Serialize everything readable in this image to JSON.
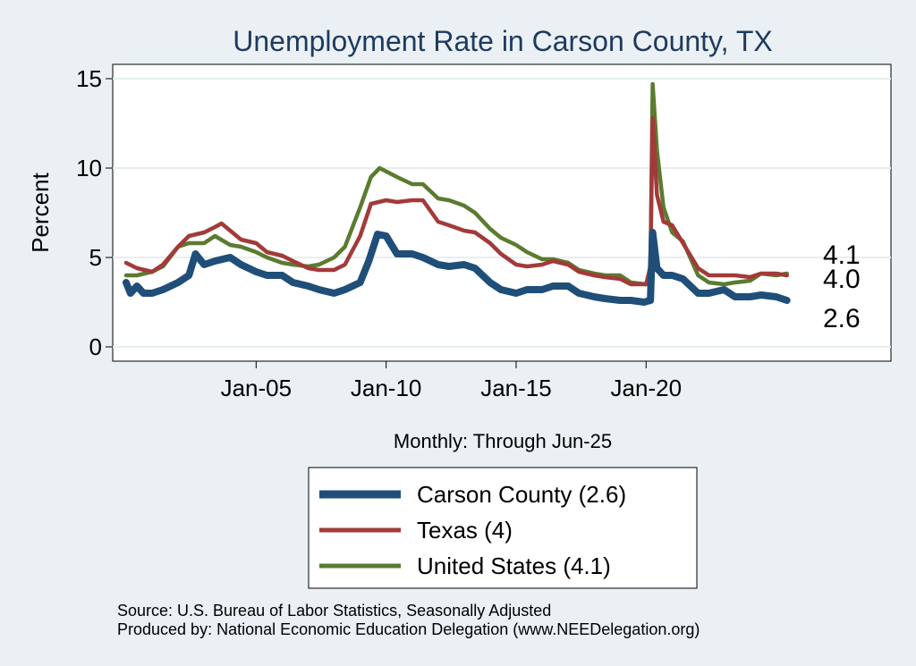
{
  "chart_data": {
    "type": "line",
    "title": "Unemployment Rate in Carson  County, TX",
    "ylabel": "Percent",
    "xlabel": "Monthly: Through Jun-25",
    "ylim": [
      0,
      15
    ],
    "yticks": [
      0,
      5,
      10,
      15
    ],
    "xlim": [
      "2000-01",
      "2029-06"
    ],
    "xticks": [
      {
        "label": "Jan-05",
        "date": "2005-01"
      },
      {
        "label": "Jan-10",
        "date": "2010-01"
      },
      {
        "label": "Jan-15",
        "date": "2015-01"
      },
      {
        "label": "Jan-20",
        "date": "2020-01"
      }
    ],
    "grid": true,
    "legend_position": "bottom-center",
    "series": [
      {
        "name": "Carson  County (2.6)",
        "legend": "Carson  County (2.6)",
        "color": "#1f4e79",
        "end_label": "2.6",
        "points": [
          [
            "2000-01",
            3.6
          ],
          [
            "2000-03",
            3.0
          ],
          [
            "2000-06",
            3.4
          ],
          [
            "2000-09",
            3.0
          ],
          [
            "2001-01",
            3.0
          ],
          [
            "2001-06",
            3.2
          ],
          [
            "2002-01",
            3.6
          ],
          [
            "2002-06",
            4.0
          ],
          [
            "2002-09",
            5.2
          ],
          [
            "2003-01",
            4.6
          ],
          [
            "2003-06",
            4.8
          ],
          [
            "2004-01",
            5.0
          ],
          [
            "2004-06",
            4.6
          ],
          [
            "2005-01",
            4.2
          ],
          [
            "2005-06",
            4.0
          ],
          [
            "2006-01",
            4.0
          ],
          [
            "2006-06",
            3.6
          ],
          [
            "2007-01",
            3.4
          ],
          [
            "2007-06",
            3.2
          ],
          [
            "2008-01",
            3.0
          ],
          [
            "2008-06",
            3.2
          ],
          [
            "2009-01",
            3.6
          ],
          [
            "2009-05",
            4.8
          ],
          [
            "2009-09",
            6.3
          ],
          [
            "2010-01",
            6.2
          ],
          [
            "2010-06",
            5.2
          ],
          [
            "2011-01",
            5.2
          ],
          [
            "2011-06",
            5.0
          ],
          [
            "2012-01",
            4.6
          ],
          [
            "2012-06",
            4.5
          ],
          [
            "2013-01",
            4.6
          ],
          [
            "2013-06",
            4.4
          ],
          [
            "2014-01",
            3.6
          ],
          [
            "2014-06",
            3.2
          ],
          [
            "2015-01",
            3.0
          ],
          [
            "2015-06",
            3.2
          ],
          [
            "2016-01",
            3.2
          ],
          [
            "2016-06",
            3.4
          ],
          [
            "2017-01",
            3.4
          ],
          [
            "2017-06",
            3.0
          ],
          [
            "2018-01",
            2.8
          ],
          [
            "2018-06",
            2.7
          ],
          [
            "2019-01",
            2.6
          ],
          [
            "2019-06",
            2.6
          ],
          [
            "2019-12",
            2.5
          ],
          [
            "2020-03",
            2.6
          ],
          [
            "2020-04",
            6.4
          ],
          [
            "2020-06",
            4.4
          ],
          [
            "2020-09",
            4.0
          ],
          [
            "2021-01",
            4.0
          ],
          [
            "2021-06",
            3.8
          ],
          [
            "2022-01",
            3.0
          ],
          [
            "2022-06",
            3.0
          ],
          [
            "2023-01",
            3.2
          ],
          [
            "2023-06",
            2.8
          ],
          [
            "2024-01",
            2.8
          ],
          [
            "2024-06",
            2.9
          ],
          [
            "2025-01",
            2.8
          ],
          [
            "2025-06",
            2.6
          ]
        ]
      },
      {
        "name": "Texas (4)",
        "legend": "Texas (4)",
        "color": "#a33a3a",
        "end_label": "4.0",
        "points": [
          [
            "2000-01",
            4.7
          ],
          [
            "2000-06",
            4.4
          ],
          [
            "2001-01",
            4.2
          ],
          [
            "2001-06",
            4.6
          ],
          [
            "2002-01",
            5.6
          ],
          [
            "2002-06",
            6.2
          ],
          [
            "2003-01",
            6.4
          ],
          [
            "2003-06",
            6.7
          ],
          [
            "2003-09",
            6.9
          ],
          [
            "2004-01",
            6.5
          ],
          [
            "2004-06",
            6.0
          ],
          [
            "2005-01",
            5.8
          ],
          [
            "2005-06",
            5.3
          ],
          [
            "2006-01",
            5.1
          ],
          [
            "2006-06",
            4.8
          ],
          [
            "2007-01",
            4.4
          ],
          [
            "2007-06",
            4.3
          ],
          [
            "2008-01",
            4.3
          ],
          [
            "2008-06",
            4.6
          ],
          [
            "2009-01",
            6.2
          ],
          [
            "2009-06",
            8.0
          ],
          [
            "2010-01",
            8.2
          ],
          [
            "2010-06",
            8.1
          ],
          [
            "2011-01",
            8.2
          ],
          [
            "2011-06",
            8.2
          ],
          [
            "2012-01",
            7.0
          ],
          [
            "2012-06",
            6.8
          ],
          [
            "2013-01",
            6.5
          ],
          [
            "2013-06",
            6.4
          ],
          [
            "2014-01",
            5.8
          ],
          [
            "2014-06",
            5.2
          ],
          [
            "2015-01",
            4.6
          ],
          [
            "2015-06",
            4.5
          ],
          [
            "2016-01",
            4.6
          ],
          [
            "2016-06",
            4.8
          ],
          [
            "2017-01",
            4.6
          ],
          [
            "2017-06",
            4.2
          ],
          [
            "2018-01",
            4.0
          ],
          [
            "2018-06",
            3.9
          ],
          [
            "2019-01",
            3.8
          ],
          [
            "2019-06",
            3.5
          ],
          [
            "2020-01",
            3.5
          ],
          [
            "2020-03",
            4.5
          ],
          [
            "2020-04",
            12.8
          ],
          [
            "2020-06",
            8.5
          ],
          [
            "2020-09",
            7.0
          ],
          [
            "2021-01",
            6.8
          ],
          [
            "2021-06",
            5.8
          ],
          [
            "2022-01",
            4.4
          ],
          [
            "2022-06",
            4.0
          ],
          [
            "2023-01",
            4.0
          ],
          [
            "2023-06",
            4.0
          ],
          [
            "2024-01",
            3.9
          ],
          [
            "2024-06",
            4.1
          ],
          [
            "2025-01",
            4.1
          ],
          [
            "2025-06",
            4.0
          ]
        ]
      },
      {
        "name": "United States (4.1)",
        "legend": "United States (4.1)",
        "color": "#5b7b2f",
        "end_label": "4.1",
        "points": [
          [
            "2000-01",
            4.0
          ],
          [
            "2000-06",
            4.0
          ],
          [
            "2001-01",
            4.2
          ],
          [
            "2001-06",
            4.5
          ],
          [
            "2002-01",
            5.6
          ],
          [
            "2002-06",
            5.8
          ],
          [
            "2003-01",
            5.8
          ],
          [
            "2003-06",
            6.2
          ],
          [
            "2004-01",
            5.7
          ],
          [
            "2004-06",
            5.6
          ],
          [
            "2005-01",
            5.3
          ],
          [
            "2005-06",
            5.0
          ],
          [
            "2006-01",
            4.7
          ],
          [
            "2006-06",
            4.6
          ],
          [
            "2007-01",
            4.5
          ],
          [
            "2007-06",
            4.6
          ],
          [
            "2008-01",
            5.0
          ],
          [
            "2008-06",
            5.6
          ],
          [
            "2009-01",
            7.8
          ],
          [
            "2009-06",
            9.5
          ],
          [
            "2009-10",
            10.0
          ],
          [
            "2010-06",
            9.5
          ],
          [
            "2011-01",
            9.1
          ],
          [
            "2011-06",
            9.1
          ],
          [
            "2012-01",
            8.3
          ],
          [
            "2012-06",
            8.2
          ],
          [
            "2013-01",
            7.9
          ],
          [
            "2013-06",
            7.5
          ],
          [
            "2014-01",
            6.6
          ],
          [
            "2014-06",
            6.1
          ],
          [
            "2015-01",
            5.7
          ],
          [
            "2015-06",
            5.3
          ],
          [
            "2016-01",
            4.9
          ],
          [
            "2016-06",
            4.9
          ],
          [
            "2017-01",
            4.7
          ],
          [
            "2017-06",
            4.3
          ],
          [
            "2018-01",
            4.1
          ],
          [
            "2018-06",
            4.0
          ],
          [
            "2019-01",
            4.0
          ],
          [
            "2019-06",
            3.6
          ],
          [
            "2020-01",
            3.5
          ],
          [
            "2020-03",
            4.4
          ],
          [
            "2020-04",
            14.7
          ],
          [
            "2020-06",
            11.0
          ],
          [
            "2020-09",
            7.8
          ],
          [
            "2021-01",
            6.4
          ],
          [
            "2021-06",
            5.9
          ],
          [
            "2022-01",
            4.0
          ],
          [
            "2022-06",
            3.6
          ],
          [
            "2023-01",
            3.5
          ],
          [
            "2023-06",
            3.6
          ],
          [
            "2024-01",
            3.7
          ],
          [
            "2024-06",
            4.1
          ],
          [
            "2025-01",
            4.0
          ],
          [
            "2025-06",
            4.1
          ]
        ]
      }
    ]
  },
  "source_lines": [
    "Source: U.S. Bureau of Labor Statistics, Seasonally Adjusted",
    "Produced by: National Economic Education Delegation (www.NEEDelegation.org)"
  ]
}
